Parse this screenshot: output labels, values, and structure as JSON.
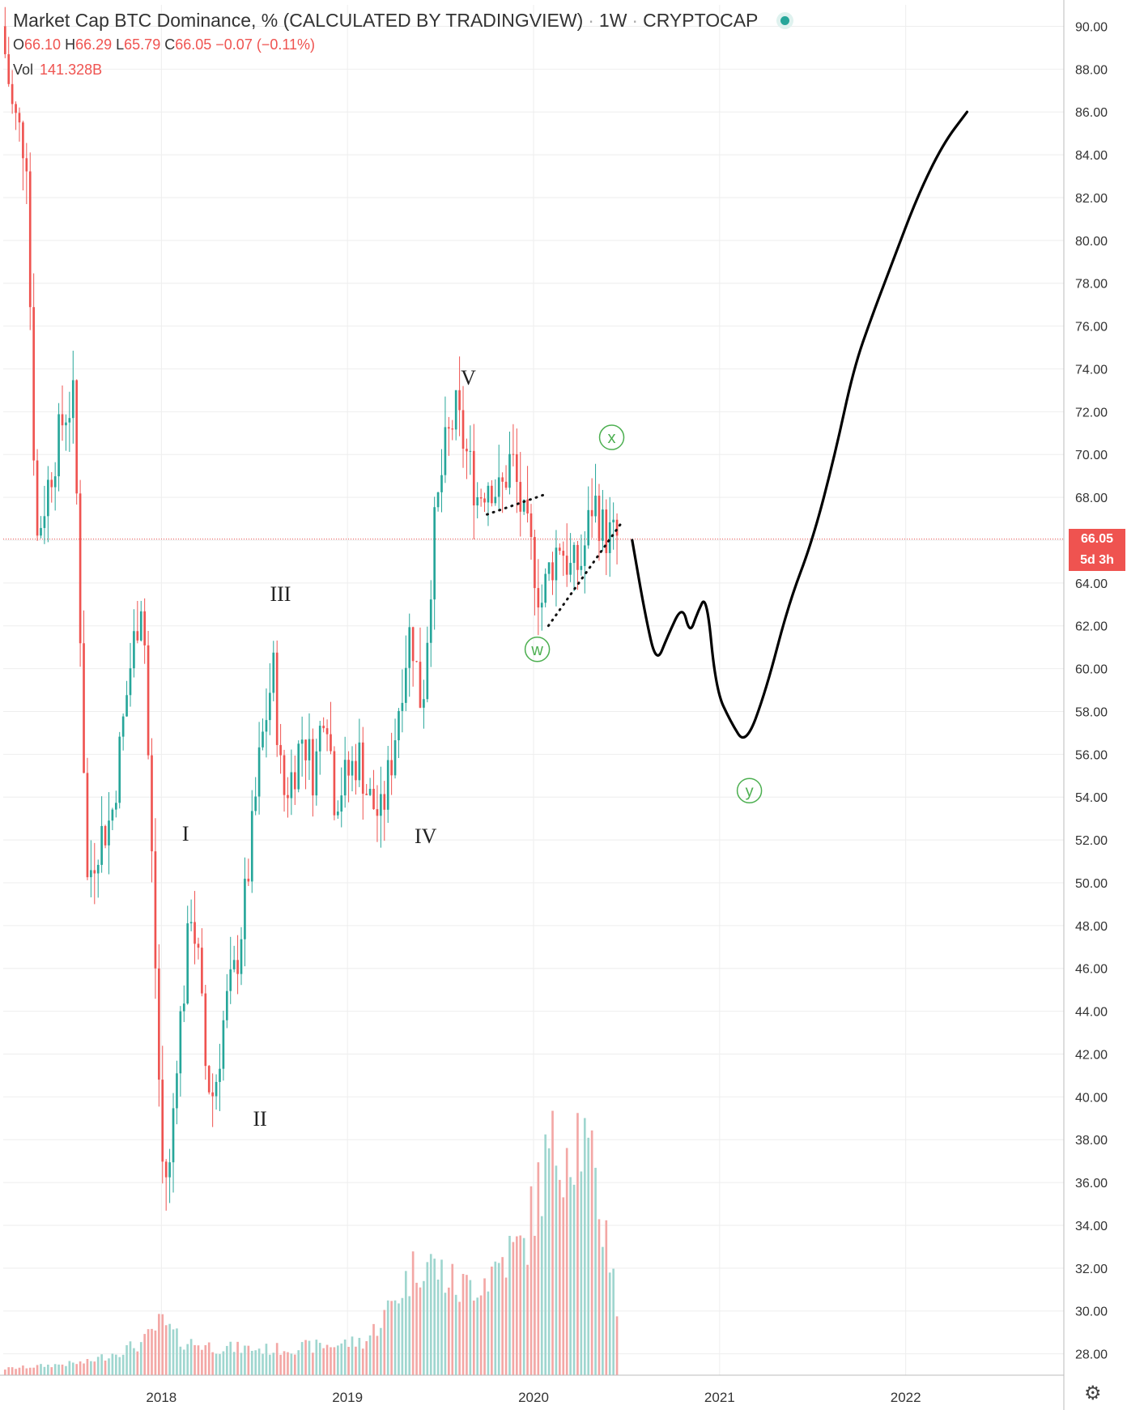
{
  "header": {
    "title": "Market Cap BTC Dominance, % (CALCULATED BY TRADINGVIEW)",
    "interval": "1W",
    "exchange": "CRYPTOCAP",
    "open_label": "O",
    "open": "66.10",
    "high_label": "H",
    "high": "66.29",
    "low_label": "L",
    "low": "65.79",
    "close_label": "C",
    "close": "66.05",
    "change": "−0.07 (−0.11%)",
    "vol_label": "Vol",
    "vol": "141.328B"
  },
  "price_tag": {
    "price": "66.05",
    "countdown": "5d 3h"
  },
  "colors": {
    "up": "#26a69a",
    "down": "#ef5350",
    "up_vol": "#9fd6cf",
    "down_vol": "#f3a7a5",
    "wave_label": "#222222",
    "corrective_label": "#4caf50",
    "grid": "#eeeeee"
  },
  "chart_data": {
    "type": "candlestick",
    "y_axis": {
      "min": 27,
      "max": 91,
      "ticks": [
        "28.00",
        "30.00",
        "32.00",
        "34.00",
        "36.00",
        "38.00",
        "40.00",
        "42.00",
        "44.00",
        "46.00",
        "48.00",
        "50.00",
        "52.00",
        "54.00",
        "56.00",
        "58.00",
        "60.00",
        "62.00",
        "64.00",
        "66.00",
        "68.00",
        "70.00",
        "72.00",
        "74.00",
        "76.00",
        "78.00",
        "80.00",
        "82.00",
        "84.00",
        "86.00",
        "88.00",
        "90.00"
      ]
    },
    "x_axis": {
      "ticks": [
        {
          "label": "2018",
          "t": 2018.0
        },
        {
          "label": "2019",
          "t": 2019.0
        },
        {
          "label": "2020",
          "t": 2020.0
        },
        {
          "label": "2021",
          "t": 2021.0
        },
        {
          "label": "2022",
          "t": 2022.0
        }
      ]
    },
    "x_range": [
      2017.15,
      2022.85
    ],
    "grid": true,
    "current_price": 66.05,
    "price_path": [
      [
        2017.16,
        90
      ],
      [
        2017.22,
        86
      ],
      [
        2017.3,
        84
      ],
      [
        2017.32,
        74
      ],
      [
        2017.35,
        66
      ],
      [
        2017.42,
        69
      ],
      [
        2017.5,
        72
      ],
      [
        2017.55,
        72.5
      ],
      [
        2017.62,
        50
      ],
      [
        2017.68,
        52
      ],
      [
        2017.75,
        53
      ],
      [
        2017.85,
        60
      ],
      [
        2017.92,
        64
      ],
      [
        2017.94,
        58
      ],
      [
        2017.98,
        48
      ],
      [
        2018.02,
        37
      ],
      [
        2018.06,
        36
      ],
      [
        2018.1,
        42
      ],
      [
        2018.14,
        45
      ],
      [
        2018.18,
        49
      ],
      [
        2018.22,
        46
      ],
      [
        2018.26,
        41
      ],
      [
        2018.3,
        40
      ],
      [
        2018.36,
        44
      ],
      [
        2018.42,
        46
      ],
      [
        2018.48,
        50
      ],
      [
        2018.55,
        56
      ],
      [
        2018.62,
        60
      ],
      [
        2018.67,
        54
      ],
      [
        2018.72,
        55
      ],
      [
        2018.78,
        57
      ],
      [
        2018.84,
        55
      ],
      [
        2018.9,
        59
      ],
      [
        2018.95,
        54
      ],
      [
        2019.02,
        55
      ],
      [
        2019.08,
        56
      ],
      [
        2019.13,
        54
      ],
      [
        2019.2,
        53
      ],
      [
        2019.26,
        56
      ],
      [
        2019.32,
        60
      ],
      [
        2019.36,
        62
      ],
      [
        2019.42,
        58
      ],
      [
        2019.48,
        66
      ],
      [
        2019.54,
        70
      ],
      [
        2019.6,
        72
      ],
      [
        2019.66,
        70
      ],
      [
        2019.72,
        68
      ],
      [
        2019.78,
        69
      ],
      [
        2019.84,
        68
      ],
      [
        2019.9,
        70
      ],
      [
        2019.96,
        67
      ],
      [
        2020.02,
        65
      ],
      [
        2020.06,
        63
      ],
      [
        2020.1,
        64.5
      ],
      [
        2020.16,
        66
      ],
      [
        2020.22,
        64.5
      ],
      [
        2020.28,
        65
      ],
      [
        2020.34,
        68
      ],
      [
        2020.4,
        66.3
      ],
      [
        2020.46,
        66.05
      ]
    ],
    "volume_path": [
      [
        2017.16,
        0.3
      ],
      [
        2017.6,
        0.6
      ],
      [
        2017.9,
        1.5
      ],
      [
        2018.0,
        2.5
      ],
      [
        2018.1,
        1.6
      ],
      [
        2018.3,
        1.3
      ],
      [
        2018.6,
        1.2
      ],
      [
        2018.9,
        1.4
      ],
      [
        2019.1,
        1.6
      ],
      [
        2019.2,
        2.8
      ],
      [
        2019.3,
        4.2
      ],
      [
        2019.4,
        5.5
      ],
      [
        2019.5,
        4.8
      ],
      [
        2019.6,
        4.0
      ],
      [
        2019.75,
        4.6
      ],
      [
        2019.85,
        5.6
      ],
      [
        2019.95,
        6.0
      ],
      [
        2020.05,
        9.5
      ],
      [
        2020.15,
        11.0
      ],
      [
        2020.25,
        11.5
      ],
      [
        2020.35,
        8.0
      ],
      [
        2020.44,
        4.8
      ],
      [
        2020.46,
        0.7
      ]
    ],
    "volume_max_price_units": 16,
    "projection_path": [
      [
        2020.53,
        66
      ],
      [
        2020.6,
        62.5
      ],
      [
        2020.66,
        60.2
      ],
      [
        2020.72,
        61.5
      ],
      [
        2020.8,
        63
      ],
      [
        2020.84,
        61.6
      ],
      [
        2020.88,
        62.6
      ],
      [
        2020.93,
        63.5
      ],
      [
        2020.98,
        59
      ],
      [
        2021.06,
        57.5
      ],
      [
        2021.14,
        56.4
      ],
      [
        2021.25,
        59
      ],
      [
        2021.37,
        63
      ],
      [
        2021.5,
        66
      ],
      [
        2021.62,
        70
      ],
      [
        2021.72,
        74
      ],
      [
        2021.82,
        76.5
      ],
      [
        2021.93,
        79
      ],
      [
        2022.06,
        82
      ],
      [
        2022.2,
        84.5
      ],
      [
        2022.33,
        86
      ]
    ],
    "trendlines": [
      {
        "from": [
          2019.75,
          67.2
        ],
        "to": [
          2020.05,
          68.1
        ]
      },
      {
        "from": [
          2020.08,
          62
        ],
        "to": [
          2020.48,
          66.9
        ]
      }
    ],
    "annotations": [
      {
        "text": "I",
        "x": 2018.13,
        "y": 52.3,
        "kind": "wave"
      },
      {
        "text": "II",
        "x": 2018.53,
        "y": 39,
        "kind": "wave"
      },
      {
        "text": "III",
        "x": 2018.64,
        "y": 63.5,
        "kind": "wave"
      },
      {
        "text": "IV",
        "x": 2019.42,
        "y": 52.2,
        "kind": "wave"
      },
      {
        "text": "V",
        "x": 2019.65,
        "y": 73.6,
        "kind": "wave"
      },
      {
        "text": "x",
        "x": 2020.42,
        "y": 70.8,
        "kind": "corrective"
      },
      {
        "text": "w",
        "x": 2200.0,
        "y": 0,
        "kind": "corrective"
      },
      {
        "text": "y",
        "x": 2021.16,
        "y": 54.3,
        "kind": "corrective"
      }
    ]
  }
}
